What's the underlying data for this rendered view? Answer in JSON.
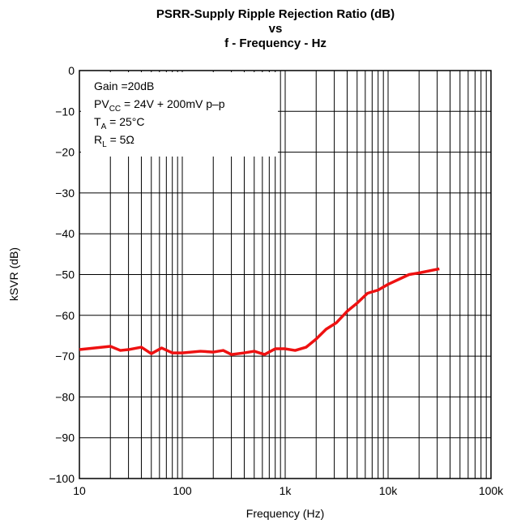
{
  "chart_data": {
    "type": "line",
    "title": [
      "PSRR-Supply Ripple Rejection Ratio (dB)",
      "vs",
      "f - Frequency - Hz"
    ],
    "xlabel": "Frequency (Hz)",
    "ylabel": "kSVR (dB)",
    "annotations": [
      [
        {
          "text": "Gain =20dB"
        }
      ],
      [
        {
          "text": "PV"
        },
        {
          "text": "CC",
          "sub": true
        },
        {
          "text": " = 24V + 200mV p–p"
        }
      ],
      [
        {
          "text": "T"
        },
        {
          "text": "A",
          "sub": true
        },
        {
          "text": " = 25°C"
        }
      ],
      [
        {
          "text": "R"
        },
        {
          "text": "L",
          "sub": true
        },
        {
          "text": " = 5Ω"
        }
      ]
    ],
    "xscale": "log",
    "grid": true,
    "xlim": [
      10,
      100000
    ],
    "ylim": [
      -100,
      0
    ],
    "xticks": [
      10,
      100,
      {
        "value": 1000,
        "label": "1k"
      },
      {
        "value": 10000,
        "label": "10k"
      },
      {
        "value": 100000,
        "label": "100k"
      }
    ],
    "yticks": [
      0,
      {
        "value": -10,
        "label": "−10"
      },
      {
        "value": -20,
        "label": "−20"
      },
      {
        "value": -30,
        "label": "−30"
      },
      {
        "value": -40,
        "label": "−40"
      },
      {
        "value": -50,
        "label": "−50"
      },
      {
        "value": -60,
        "label": "−60"
      },
      {
        "value": -70,
        "label": "−70"
      },
      {
        "value": -80,
        "label": "−80"
      },
      {
        "value": -90,
        "label": "−90"
      },
      {
        "value": -100,
        "label": "−100"
      }
    ],
    "x": [
      10,
      20,
      25,
      30,
      40,
      50,
      63,
      80,
      100,
      150,
      200,
      250,
      300,
      400,
      500,
      630,
      800,
      1000,
      1250,
      1600,
      2000,
      2500,
      3150,
      4000,
      5000,
      6300,
      8000,
      10000,
      16000,
      20000,
      31500
    ],
    "series": [
      {
        "color": "#ee1111",
        "values": [
          -68.4,
          -67.6,
          -68.6,
          -68.4,
          -67.8,
          -69.4,
          -68,
          -69.2,
          -69.2,
          -68.8,
          -69,
          -68.6,
          -69.6,
          -69.2,
          -68.8,
          -69.6,
          -68.2,
          -68.2,
          -68.6,
          -67.8,
          -65.8,
          -63.4,
          -61.8,
          -59,
          -57,
          -54.6,
          -53.8,
          -52.4,
          -50,
          -49.6,
          -48.6
        ]
      }
    ]
  }
}
